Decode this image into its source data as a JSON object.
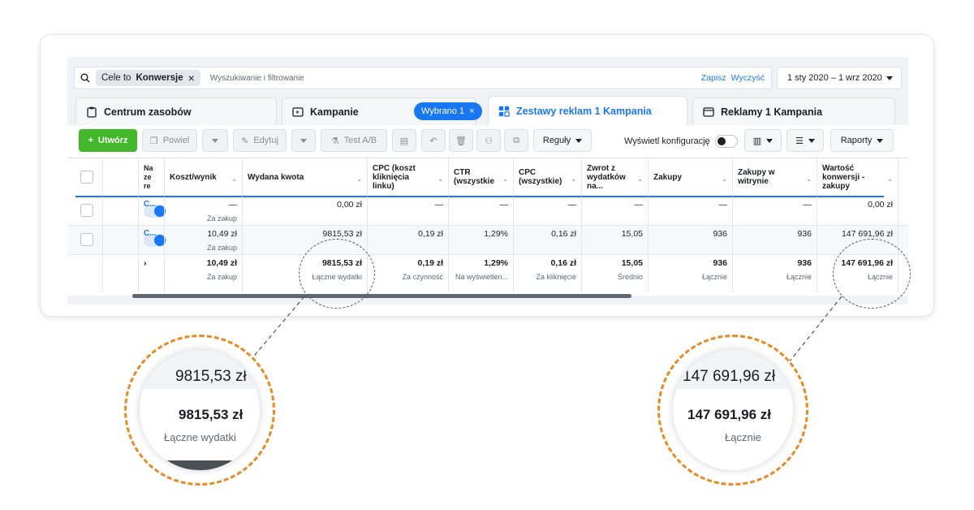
{
  "search": {
    "chip_prefix": "Cele to",
    "chip_value": "Konwersje",
    "placeholder": "Wyszukiwanie i filtrowanie",
    "save": "Zapisz",
    "clear": "Wyczyść",
    "date_range": "1 sty 2020 – 1 wrz 2020"
  },
  "tabs": {
    "assets": "Centrum zasobów",
    "campaigns": "Kampanie",
    "selected_badge": "Wybrano 1",
    "adsets": "Zestawy reklam 1 Kampania",
    "ads": "Reklamy 1 Kampania"
  },
  "toolbar": {
    "create": "Utwórz",
    "duplicate": "Powiel",
    "edit": "Edytuj",
    "ab_test": "Test A/B",
    "rules": "Reguły",
    "show_config": "Wyświetl konfigurację",
    "reports": "Raporty"
  },
  "columns": {
    "name": "Na ze re",
    "cost_result": "Koszt/wynik",
    "spent": "Wydana kwota",
    "cpc_link": "CPC (koszt kliknięcia linku)",
    "ctr": "CTR (wszystkie",
    "cpc_all": "CPC (wszystkie)",
    "roas": "Zwrot z wydatków na...",
    "purchases": "Zakupy",
    "site_purchases": "Zakupy w witrynie",
    "conv_value": "Wartość konwersji - zakupy"
  },
  "rows": [
    {
      "name": "C...",
      "cost_result": "—",
      "cost_result_sub": "Za zakup",
      "spent": "0,00 zł",
      "cpc_link": "—",
      "ctr": "—",
      "cpc_all": "—",
      "roas": "—",
      "purchases": "—",
      "site_purchases": "—",
      "conv_value": "0,00 zł"
    },
    {
      "name": "C...",
      "cost_result": "10,49 zł",
      "cost_result_sub": "Za zakup",
      "spent": "9815,53 zł",
      "cpc_link": "0,19 zł",
      "ctr": "1,29%",
      "cpc_all": "0,16 zł",
      "roas": "15,05",
      "purchases": "936",
      "site_purchases": "936",
      "conv_value": "147 691,96 zł"
    }
  ],
  "totals": {
    "cost_result": "10,49 zł",
    "cost_result_sub": "Za zakup",
    "spent": "9815,53 zł",
    "spent_sub": "Łączne wydatki",
    "cpc_link": "0,19 zł",
    "cpc_link_sub": "Za czynność",
    "ctr": "1,29%",
    "ctr_sub": "Na wyświetlen...",
    "cpc_all": "0,16 zł",
    "cpc_all_sub": "Za kliknięcie",
    "roas": "15,05",
    "roas_sub": "Średnio",
    "purchases": "936",
    "purchases_sub": "Łącznie",
    "site_purchases": "936",
    "site_purchases_sub": "Łącznie",
    "conv_value": "147 691,96 zł",
    "conv_value_sub": "Łącznie"
  },
  "magnifier_left": {
    "top": "9815,53 zł",
    "value": "9815,53 zł",
    "sub": "Łączne wydatki"
  },
  "magnifier_right": {
    "top": "147 691,96 zł",
    "value": "147 691,96 zł",
    "sub": "Łącznie"
  },
  "colors": {
    "accent": "#1877f2",
    "create": "#42b72a",
    "magnifier": "#e88a22"
  }
}
